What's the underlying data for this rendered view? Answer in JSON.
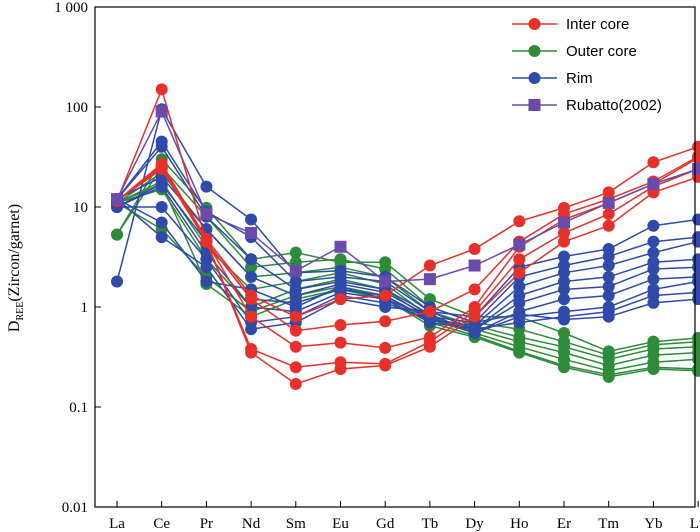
{
  "chart_data": {
    "type": "line",
    "y_scale": "log",
    "ylim": [
      0.01,
      1000
    ],
    "yticks": [
      "0.01",
      "0.1",
      "1",
      "10",
      "100",
      "1 000"
    ],
    "ytick_values": [
      0.01,
      0.1,
      1,
      10,
      100,
      1000
    ],
    "ylabel_main": "D",
    "ylabel_sub": "REE",
    "ylabel_rest": "(Zircon/garnet)",
    "xlabel": "",
    "categories": [
      "La",
      "Ce",
      "Pr",
      "Nd",
      "Sm",
      "Eu",
      "Gd",
      "Tb",
      "Dy",
      "Ho",
      "Er",
      "Tm",
      "Yb",
      "Lu"
    ],
    "grid": false,
    "legend_position": "top-right",
    "legend": [
      {
        "label": "Inter core",
        "color": "#e8302a",
        "marker": "circle"
      },
      {
        "label": "Outer core",
        "color": "#2e8b3a",
        "marker": "circle"
      },
      {
        "label": "Rim",
        "color": "#2f4aa8",
        "marker": "circle"
      },
      {
        "label": "Rubatto(2002)",
        "color": "#6a4bab",
        "marker": "square"
      }
    ],
    "series": [
      {
        "group": "Inter core",
        "values": [
          11.5,
          150,
          4.5,
          0.35,
          0.17,
          0.24,
          0.26,
          0.4,
          0.8,
          2.2,
          4.5,
          6.5,
          14,
          20
        ]
      },
      {
        "group": "Inter core",
        "values": [
          11.5,
          25,
          4.5,
          0.38,
          0.25,
          0.28,
          0.27,
          0.45,
          0.9,
          3.0,
          5.5,
          8.5,
          16,
          24
        ]
      },
      {
        "group": "Inter core",
        "values": [
          11.5,
          24,
          4.5,
          0.8,
          0.4,
          0.44,
          0.39,
          0.5,
          1.0,
          4.0,
          7.5,
          11,
          17,
          31
        ]
      },
      {
        "group": "Inter core",
        "values": [
          11.5,
          26,
          4.5,
          1.2,
          0.58,
          0.66,
          0.72,
          0.9,
          1.5,
          4.5,
          8.5,
          12,
          18,
          32
        ]
      },
      {
        "group": "Inter core",
        "values": [
          11.5,
          27,
          4.8,
          1.3,
          0.8,
          1.2,
          1.3,
          2.6,
          3.8,
          7.2,
          9.8,
          14,
          28,
          40
        ]
      },
      {
        "group": "Outer core",
        "values": [
          5.3,
          30,
          9.8,
          3.0,
          3.5,
          2.8,
          2.8,
          1.2,
          0.8,
          0.8,
          0.55,
          0.36,
          0.45,
          0.49
        ]
      },
      {
        "group": "Outer core",
        "values": [
          5.3,
          25,
          8.0,
          2.5,
          2.8,
          3.0,
          2.4,
          1.0,
          0.7,
          0.6,
          0.45,
          0.33,
          0.42,
          0.45
        ]
      },
      {
        "group": "Outer core",
        "values": [
          11,
          22,
          6.0,
          2.0,
          2.2,
          2.5,
          2.0,
          0.9,
          0.65,
          0.5,
          0.4,
          0.3,
          0.38,
          0.4
        ]
      },
      {
        "group": "Outer core",
        "values": [
          11,
          18,
          4.0,
          1.5,
          1.8,
          2.2,
          1.7,
          0.8,
          0.6,
          0.45,
          0.35,
          0.26,
          0.33,
          0.35
        ]
      },
      {
        "group": "Outer core",
        "values": [
          11,
          15,
          3.0,
          1.0,
          1.5,
          1.9,
          1.5,
          0.75,
          0.55,
          0.4,
          0.3,
          0.23,
          0.28,
          0.3
        ]
      },
      {
        "group": "Outer core",
        "values": [
          11,
          6,
          2.0,
          0.9,
          1.3,
          1.6,
          1.3,
          0.7,
          0.52,
          0.36,
          0.26,
          0.21,
          0.25,
          0.24
        ]
      },
      {
        "group": "Outer core",
        "values": [
          11,
          17,
          1.7,
          0.8,
          1.2,
          1.5,
          1.2,
          0.65,
          0.5,
          0.35,
          0.25,
          0.2,
          0.24,
          0.23
        ]
      },
      {
        "group": "Rim",
        "values": [
          1.8,
          95,
          16,
          7.5,
          2.2,
          2.3,
          2.0,
          1.0,
          0.7,
          0.85,
          0.75,
          0.8,
          1.1,
          1.2
        ]
      },
      {
        "group": "Rim",
        "values": [
          12,
          45,
          9.0,
          5.0,
          1.8,
          2.0,
          1.8,
          0.9,
          0.6,
          0.7,
          0.8,
          0.9,
          1.3,
          1.4
        ]
      },
      {
        "group": "Rim",
        "values": [
          12,
          40,
          8.0,
          3.0,
          1.5,
          1.8,
          1.5,
          0.85,
          0.55,
          0.8,
          0.9,
          1.0,
          1.5,
          1.8
        ]
      },
      {
        "group": "Rim",
        "values": [
          12,
          20,
          6.0,
          2.0,
          1.3,
          1.7,
          1.4,
          0.8,
          0.55,
          0.9,
          1.2,
          1.3,
          1.9,
          2.0
        ]
      },
      {
        "group": "Rim",
        "values": [
          10,
          17,
          4.5,
          1.2,
          1.1,
          1.5,
          1.3,
          0.75,
          0.6,
          1.1,
          1.5,
          1.6,
          2.4,
          2.5
        ]
      },
      {
        "group": "Rim",
        "values": [
          10,
          16,
          3.5,
          1.0,
          0.9,
          1.4,
          1.2,
          0.7,
          0.6,
          1.3,
          1.8,
          2.0,
          2.8,
          3.0
        ]
      },
      {
        "group": "Rim",
        "values": [
          10,
          10,
          3.0,
          0.7,
          0.8,
          1.3,
          1.1,
          0.75,
          0.65,
          1.6,
          2.2,
          2.6,
          3.5,
          4.5
        ]
      },
      {
        "group": "Rim",
        "values": [
          12,
          7,
          1.8,
          1.5,
          1.0,
          1.6,
          1.2,
          0.8,
          0.7,
          2.0,
          2.6,
          3.2,
          4.5,
          5.0
        ]
      },
      {
        "group": "Rim",
        "values": [
          12,
          5,
          2.5,
          0.6,
          0.7,
          1.2,
          1.0,
          0.9,
          0.8,
          2.5,
          3.2,
          3.8,
          6.5,
          7.5
        ]
      },
      {
        "group": "Rubatto(2002)",
        "values": [
          12,
          90,
          8.5,
          5.5,
          2.3,
          4.0,
          1.8,
          1.9,
          2.6,
          4.2,
          7.0,
          11,
          17,
          24
        ]
      }
    ]
  }
}
